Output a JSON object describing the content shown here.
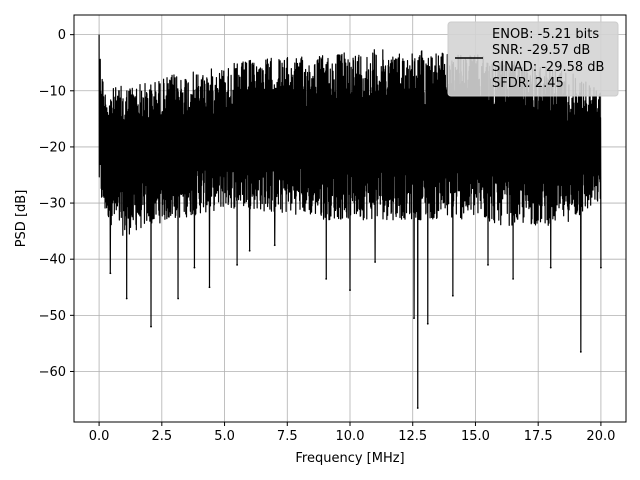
{
  "chart_data": {
    "type": "line",
    "xlabel": "Frequency [MHz]",
    "ylabel": "PSD [dB]",
    "xlim": [
      -1.0,
      21.0
    ],
    "ylim": [
      -69.0,
      3.5
    ],
    "xticks": [
      0.0,
      2.5,
      5.0,
      7.5,
      10.0,
      12.5,
      15.0,
      17.5,
      20.0
    ],
    "xtick_labels": [
      "0.0",
      "2.5",
      "5.0",
      "7.5",
      "10.0",
      "12.5",
      "15.0",
      "17.5",
      "20.0"
    ],
    "yticks": [
      0,
      -10,
      -20,
      -30,
      -40,
      -50,
      -60
    ],
    "ytick_labels": [
      "0",
      "−10",
      "−20",
      "−30",
      "−40",
      "−50",
      "−60"
    ],
    "grid": true,
    "legend": {
      "placement": "upper-right",
      "entries": [
        "ENOB: -5.21 bits",
        "SNR: -29.57 dB",
        "SINAD: -29.58 dB",
        "SFDR: 2.45"
      ]
    },
    "series": [
      {
        "color": "#000000",
        "envelope": {
          "x": [
            0.0,
            0.05,
            0.2,
            0.5,
            1.0,
            1.5,
            2.0,
            3.0,
            4.0,
            5.0,
            6.0,
            7.0,
            8.0,
            9.0,
            10.0,
            11.0,
            12.0,
            13.0,
            14.0,
            15.0,
            16.0,
            17.0,
            18.0,
            19.0,
            20.0
          ],
          "upper": [
            0.0,
            -3.0,
            -9.5,
            -9.5,
            -9.0,
            -8.5,
            -8.5,
            -7.0,
            -6.5,
            -5.5,
            -4.5,
            -4.0,
            -4.0,
            -3.5,
            -3.0,
            -2.5,
            -3.0,
            -2.5,
            -3.5,
            -3.5,
            -4.5,
            -5.0,
            -5.0,
            -7.0,
            -10.0
          ],
          "lower": [
            -28.0,
            -30.0,
            -32.0,
            -34.0,
            -36.0,
            -35.0,
            -34.0,
            -33.0,
            -32.0,
            -31.0,
            -31.0,
            -32.0,
            -32.0,
            -33.0,
            -33.0,
            -33.0,
            -33.0,
            -33.0,
            -33.0,
            -33.0,
            -34.0,
            -34.0,
            -34.0,
            -33.0,
            -30.0
          ]
        },
        "dips": [
          {
            "x": 0.45,
            "y": -42.5
          },
          {
            "x": 1.1,
            "y": -47.0
          },
          {
            "x": 2.07,
            "y": -52.0
          },
          {
            "x": 3.15,
            "y": -47.0
          },
          {
            "x": 3.8,
            "y": -41.5
          },
          {
            "x": 4.4,
            "y": -45.0
          },
          {
            "x": 5.5,
            "y": -41.0
          },
          {
            "x": 6.0,
            "y": -38.5
          },
          {
            "x": 7.0,
            "y": -37.5
          },
          {
            "x": 9.05,
            "y": -43.5
          },
          {
            "x": 10.0,
            "y": -45.5
          },
          {
            "x": 11.0,
            "y": -40.5
          },
          {
            "x": 12.55,
            "y": -50.5
          },
          {
            "x": 12.7,
            "y": -66.5
          },
          {
            "x": 13.1,
            "y": -51.5
          },
          {
            "x": 14.1,
            "y": -46.5
          },
          {
            "x": 15.5,
            "y": -41.0
          },
          {
            "x": 16.5,
            "y": -43.5
          },
          {
            "x": 18.0,
            "y": -41.5
          },
          {
            "x": 19.2,
            "y": -56.5
          },
          {
            "x": 20.0,
            "y": -41.5
          }
        ]
      }
    ]
  }
}
